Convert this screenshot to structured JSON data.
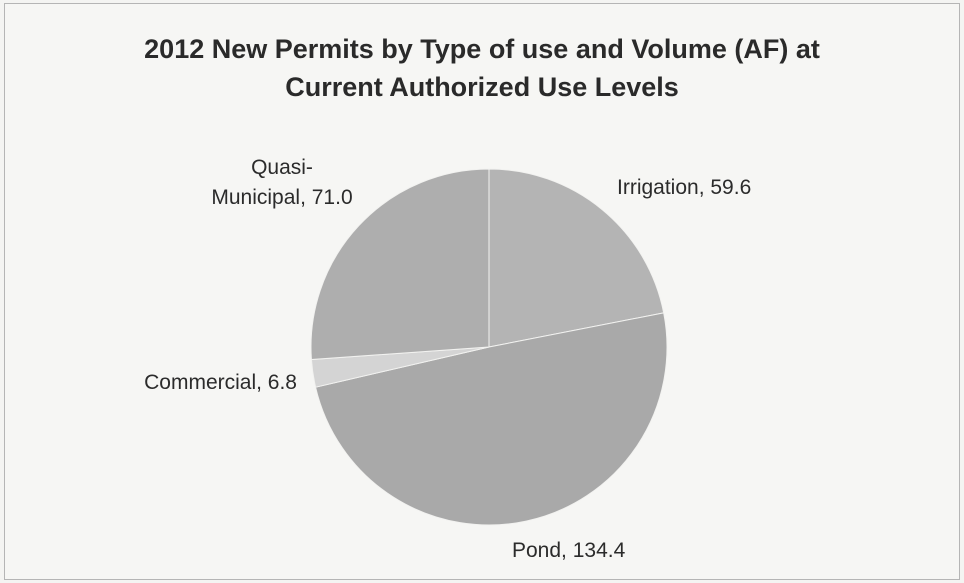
{
  "chart_data": {
    "type": "pie",
    "title_lines": [
      "2012 New Permits by Type of use and Volume (AF) at",
      "Current Authorized Use Levels"
    ],
    "categories": [
      "Irrigation",
      "Pond",
      "Commercial",
      "Quasi-Municipal"
    ],
    "values": [
      59.6,
      134.4,
      6.8,
      71.0
    ],
    "labels": [
      [
        "Irrigation, 59.6"
      ],
      [
        "Pond, 134.4"
      ],
      [
        "Commercial, 6.8"
      ],
      [
        "Quasi-",
        "Municipal, 71.0"
      ]
    ],
    "colors": [
      "#b4b4b4",
      "#a9a9a9",
      "#d4d4d4",
      "#aeaeae"
    ],
    "legend": "none"
  }
}
